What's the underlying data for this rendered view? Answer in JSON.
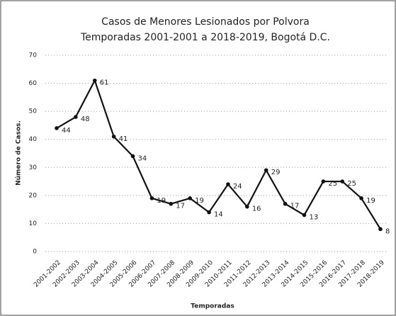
{
  "chart_data": {
    "type": "line",
    "title": "Casos de Menores Lesionados por Polvora",
    "subtitle": "Temporadas 2001-2001 a 2018-2019, Bogotá D.C.",
    "x_label": "Temporadas",
    "y_label": "Número de Casos.",
    "categories": [
      "2001-2002",
      "2002-2003",
      "2003-2004",
      "2004-2005",
      "2005-2006",
      "2006-2007",
      "2007-2008",
      "2008-2009",
      "2009-2010",
      "2010-2011",
      "2011-2012",
      "2012-2013",
      "2013-2014",
      "2014-2015",
      "2015-2016",
      "2016-2017",
      "2017-2018",
      "2018-2019"
    ],
    "series": [
      {
        "name": "Casos",
        "color": "#111111",
        "values": [
          44,
          48,
          61,
          41,
          34,
          19,
          17,
          19,
          14,
          24,
          16,
          29,
          17,
          13,
          25,
          25,
          19,
          8
        ]
      }
    ],
    "ylim": [
      0,
      70
    ],
    "yticks": [
      0,
      10,
      20,
      30,
      40,
      50,
      60,
      70
    ],
    "grid": true
  }
}
